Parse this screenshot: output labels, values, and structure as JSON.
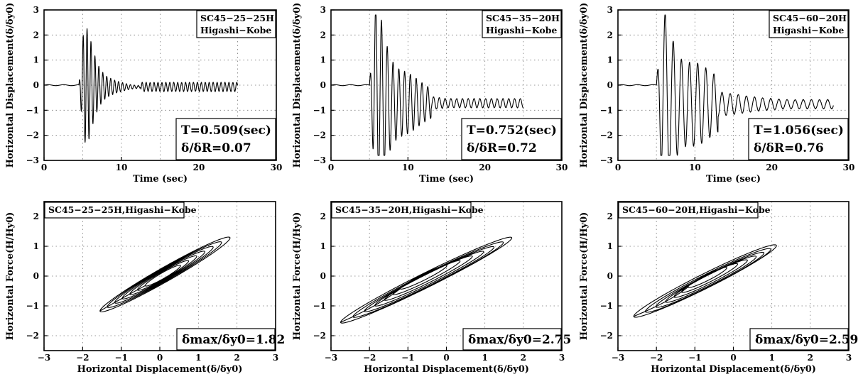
{
  "chart_data": [
    {
      "type": "line",
      "xlabel": "Time  (sec)",
      "ylabel": "Horizontal Displacement(δ/δy0)",
      "xlim": [
        0,
        30
      ],
      "ylim": [
        -3,
        3
      ],
      "xticks": [
        "0",
        "10",
        "20",
        "30"
      ],
      "yticks": [
        "3",
        "2",
        "1",
        "0",
        "−1",
        "−2",
        "−3"
      ],
      "grid": true,
      "label_lines": [
        "SC45−25−25H",
        "Higashi−Kobe"
      ],
      "annotation_lines": [
        "T=0.509(sec)",
        "δ/δR=0.07"
      ],
      "signal": {
        "start": 4.5,
        "end": 25,
        "period": 0.509,
        "peak": 1.82,
        "offset": -0.07,
        "decay": 0.55
      }
    },
    {
      "type": "line",
      "xlabel": "Time  (sec)",
      "ylabel": "Horizontal Displacement(δ/δy0)",
      "xlim": [
        0,
        30
      ],
      "ylim": [
        -3,
        3
      ],
      "xticks": [
        "0",
        "10",
        "20",
        "30"
      ],
      "yticks": [
        "3",
        "2",
        "1",
        "0",
        "−1",
        "−2",
        "−3"
      ],
      "grid": true,
      "label_lines": [
        "SC45−35−20H",
        "Higashi−Kobe"
      ],
      "annotation_lines": [
        "T=0.752(sec)",
        "δ/δR=0.72"
      ],
      "signal": {
        "start": 5.0,
        "end": 25,
        "period": 0.752,
        "peak": 2.75,
        "offset": -0.72,
        "decay": 0.22
      }
    },
    {
      "type": "line",
      "xlabel": "Time  (sec)",
      "ylabel": "Horizontal Displacement(δ/δy0)",
      "xlim": [
        0,
        30
      ],
      "ylim": [
        -3,
        3
      ],
      "xticks": [
        "0",
        "10",
        "20",
        "30"
      ],
      "yticks": [
        "3",
        "2",
        "1",
        "0",
        "−1",
        "−2",
        "−3"
      ],
      "grid": true,
      "label_lines": [
        "SC45−60−20H",
        "Higashi−Kobe"
      ],
      "annotation_lines": [
        "T=1.056(sec)",
        "δ/δR=0.76"
      ],
      "signal": {
        "start": 5.0,
        "end": 28,
        "period": 1.056,
        "peak": 2.59,
        "offset": -0.76,
        "decay": 0.12
      }
    },
    {
      "type": "line",
      "xlabel": "Horizontal  Displacement(δ/δy0)",
      "ylabel": "Horizontal Force(H/Hy0)",
      "xlim": [
        -3,
        3
      ],
      "ylim": [
        -2.5,
        2.5
      ],
      "xticks": [
        "−3",
        "−2",
        "−1",
        "0",
        "1",
        "2",
        "3"
      ],
      "yticks": [
        "2",
        "1",
        "0",
        "−1",
        "−2"
      ],
      "grid": true,
      "label_lines": [
        "SC45−25−25H,Higashi−Kobe"
      ],
      "annotation_lines": [
        "δmax/δy0=1.82"
      ],
      "hysteresis": {
        "max_disp": 1.82,
        "max_force": 1.28,
        "min_disp": -1.55,
        "min_force": -1.17,
        "residual": 0.07,
        "stiffness": 0.72
      }
    },
    {
      "type": "line",
      "xlabel": "Horizontal  Displacement(δ/δy0)",
      "ylabel": "Horizontal Force(H/Hy0)",
      "xlim": [
        -3,
        3
      ],
      "ylim": [
        -2.5,
        2.5
      ],
      "xticks": [
        "−3",
        "−2",
        "−1",
        "0",
        "1",
        "2",
        "3"
      ],
      "yticks": [
        "2",
        "1",
        "0",
        "−1",
        "−2"
      ],
      "grid": true,
      "label_lines": [
        "SC45−35−20H,Higashi−Kobe"
      ],
      "annotation_lines": [
        "δmax/δy0=2.75"
      ],
      "hysteresis": {
        "max_disp": 1.7,
        "max_force": 1.28,
        "min_disp": -2.75,
        "min_force": -1.55,
        "residual": -0.72,
        "stiffness": 0.95
      }
    },
    {
      "type": "line",
      "xlabel": "Horizontal  Displacement(δ/δy0)",
      "ylabel": "Horizontal Force(H/Hy0)",
      "xlim": [
        -3,
        3
      ],
      "ylim": [
        -2.5,
        2.5
      ],
      "xticks": [
        "−3",
        "−2",
        "−1",
        "0",
        "1",
        "2",
        "3"
      ],
      "yticks": [
        "2",
        "1",
        "0",
        "−1",
        "−2"
      ],
      "grid": true,
      "label_lines": [
        "SC45−60−20H,Higashi−Kobe"
      ],
      "annotation_lines": [
        "δmax/δy0=2.59"
      ],
      "hysteresis": {
        "max_disp": 1.12,
        "max_force": 1.02,
        "min_disp": -2.59,
        "min_force": -1.35,
        "residual": -0.76,
        "stiffness": 0.85
      }
    }
  ]
}
